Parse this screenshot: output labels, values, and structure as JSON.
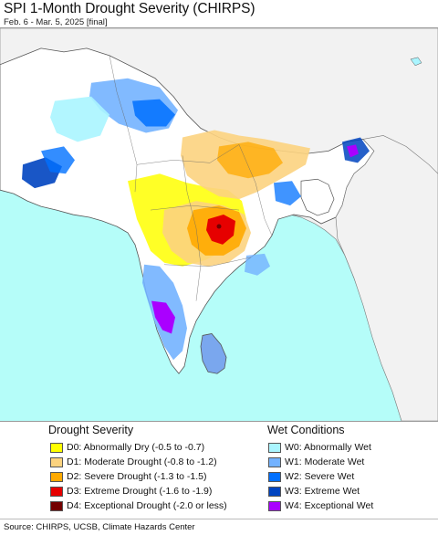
{
  "header": {
    "title": "SPI 1-Month Drought Severity (CHIRPS)",
    "subtitle": "Feb. 6 - Mar. 5, 2025 [final]"
  },
  "colors": {
    "ocean": "#b5fdf9",
    "land_outside": "#f2f2f2",
    "land_normal": "#ffffff",
    "border": "#555555"
  },
  "legend": {
    "drought": {
      "heading": "Drought Severity",
      "items": [
        {
          "label": "D0: Abnormally Dry (-0.5 to -0.7)",
          "color": "#ffff00"
        },
        {
          "label": "D1: Moderate Drought (-0.8 to -1.2)",
          "color": "#fcd37f"
        },
        {
          "label": "D2: Severe Drought (-1.3 to -1.5)",
          "color": "#ffaa00"
        },
        {
          "label": "D3: Extreme Drought (-1.6 to -1.9)",
          "color": "#e60000"
        },
        {
          "label": "D4: Exceptional Drought (-2.0 or less)",
          "color": "#730000"
        }
      ]
    },
    "wet": {
      "heading": "Wet Conditions",
      "items": [
        {
          "label": "W0: Abnormally Wet",
          "color": "#aaf5ff"
        },
        {
          "label": "W1: Moderate Wet",
          "color": "#73b2ff"
        },
        {
          "label": "W2: Severe Wet",
          "color": "#0070ff"
        },
        {
          "label": "W3: Extreme Wet",
          "color": "#0044c0"
        },
        {
          "label": "W4: Exceptional Wet",
          "color": "#aa00ff"
        }
      ]
    }
  },
  "footer": {
    "source": "Source: CHIRPS, UCSB, Climate Hazards Center"
  }
}
